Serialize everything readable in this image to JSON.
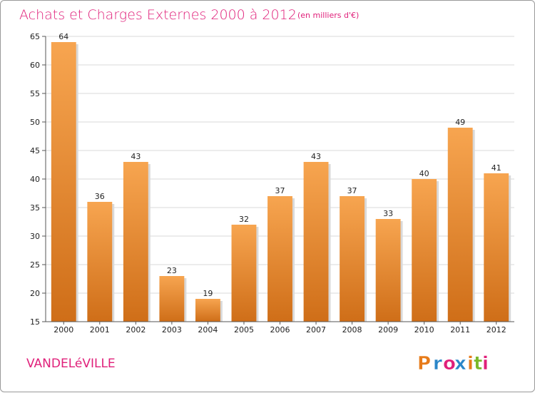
{
  "header": {
    "title": "Achats et Charges Externes 2000 à 2012",
    "subtitle": "(en milliers d'€)"
  },
  "footer": {
    "commune": "VANDELéVILLE",
    "logo_text": "Proxiti",
    "logo_colors": [
      "#e77b1a",
      "#2a86c8",
      "#e0207a",
      "#2a86c8",
      "#e77b1a",
      "#7ab82a",
      "#e0207a"
    ]
  },
  "colors": {
    "bar_light": "#f7a550",
    "bar_dark": "#cf6e18",
    "grid": "#d8d8d8",
    "title": "#e0207a"
  },
  "chart_data": {
    "type": "bar",
    "categories": [
      "2000",
      "2001",
      "2002",
      "2003",
      "2004",
      "2005",
      "2006",
      "2007",
      "2008",
      "2009",
      "2010",
      "2011",
      "2012"
    ],
    "values": [
      64,
      36,
      43,
      23,
      19,
      32,
      37,
      43,
      37,
      33,
      40,
      49,
      41
    ],
    "ylim": [
      15,
      65
    ],
    "yticks": [
      15,
      20,
      25,
      30,
      35,
      40,
      45,
      50,
      55,
      60,
      65
    ],
    "grid": true
  }
}
